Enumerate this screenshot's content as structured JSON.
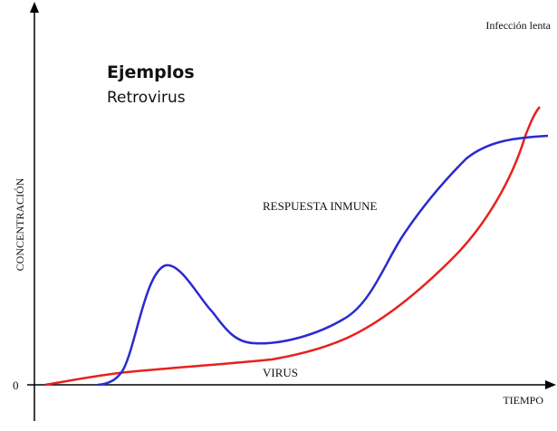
{
  "header": {
    "note": "Infección lenta",
    "title": "Ejemplos",
    "subtitle": "Retrovirus"
  },
  "axes": {
    "y_label": "CONCENTRACIÓN",
    "origin": "0",
    "x_label": "TIEMPO"
  },
  "curves": [
    {
      "label": "RESPUESTA INMUNE"
    },
    {
      "label": "VIRUS"
    }
  ]
}
